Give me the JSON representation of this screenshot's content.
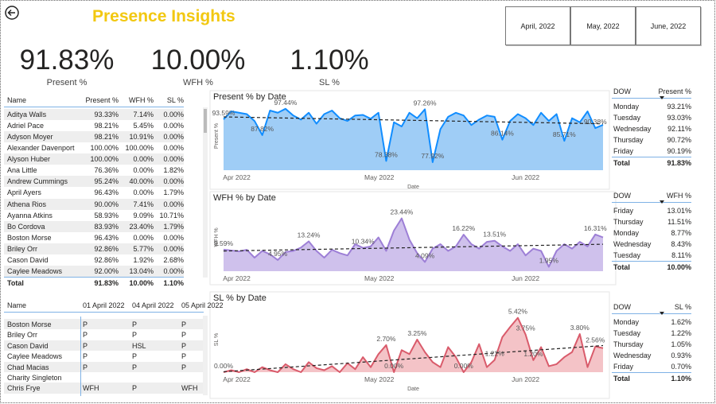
{
  "header": {
    "title": "Presence Insights"
  },
  "months": [
    "April, 2022",
    "May, 2022",
    "June, 2022"
  ],
  "kpis": [
    {
      "value": "91.83%",
      "label": "Present %"
    },
    {
      "value": "10.00%",
      "label": "WFH %"
    },
    {
      "value": "1.10%",
      "label": "SL %"
    }
  ],
  "summary_table": {
    "columns": [
      "Name",
      "Present %",
      "WFH %",
      "SL %"
    ],
    "rows": [
      [
        "Aditya Walls",
        "93.33%",
        "7.14%",
        "0.00%"
      ],
      [
        "Adriel Pace",
        "98.21%",
        "5.45%",
        "0.00%"
      ],
      [
        "Adyson Moyer",
        "98.21%",
        "10.91%",
        "0.00%"
      ],
      [
        "Alexander Davenport",
        "100.00%",
        "100.00%",
        "0.00%"
      ],
      [
        "Alyson Huber",
        "100.00%",
        "0.00%",
        "0.00%"
      ],
      [
        "Ana Little",
        "76.36%",
        "0.00%",
        "1.82%"
      ],
      [
        "Andrew Cummings",
        "95.24%",
        "40.00%",
        "0.00%"
      ],
      [
        "April Ayers",
        "96.43%",
        "0.00%",
        "1.79%"
      ],
      [
        "Athena Rios",
        "90.00%",
        "7.41%",
        "0.00%"
      ],
      [
        "Ayanna Atkins",
        "58.93%",
        "9.09%",
        "10.71%"
      ],
      [
        "Bo Cordova",
        "83.93%",
        "23.40%",
        "1.79%"
      ],
      [
        "Boston Morse",
        "96.43%",
        "0.00%",
        "0.00%"
      ],
      [
        "Briley Orr",
        "92.86%",
        "5.77%",
        "0.00%"
      ],
      [
        "Cason David",
        "92.86%",
        "1.92%",
        "2.68%"
      ],
      [
        "Caylee Meadows",
        "92.00%",
        "13.04%",
        "0.00%"
      ]
    ],
    "total": [
      "Total",
      "91.83%",
      "10.00%",
      "1.10%"
    ]
  },
  "daily_table": {
    "columns": [
      "Name",
      "01 April 2022",
      "04 April 2022",
      "05 April 2022"
    ],
    "rows": [
      [
        "Boston Morse",
        "P",
        "P",
        "P"
      ],
      [
        "Briley Orr",
        "P",
        "P",
        "P"
      ],
      [
        "Cason David",
        "P",
        "HSL",
        "P"
      ],
      [
        "Caylee Meadows",
        "P",
        "P",
        "P"
      ],
      [
        "Chad Macias",
        "P",
        "P",
        "P"
      ],
      [
        "Charity Singleton",
        null,
        null,
        null
      ],
      [
        "Chris Frye",
        "WFH",
        "P",
        "WFH"
      ]
    ]
  },
  "dow_tables": [
    {
      "columns": [
        "DOW",
        "Present %"
      ],
      "rows": [
        [
          "Monday",
          "93.21%"
        ],
        [
          "Tuesday",
          "93.03%"
        ],
        [
          "Wednesday",
          "92.11%"
        ],
        [
          "Thursday",
          "90.72%"
        ],
        [
          "Friday",
          "90.19%"
        ]
      ],
      "total": [
        "Total",
        "91.83%"
      ]
    },
    {
      "columns": [
        "DOW",
        "WFH %"
      ],
      "rows": [
        [
          "Friday",
          "13.01%"
        ],
        [
          "Thursday",
          "11.51%"
        ],
        [
          "Monday",
          "8.77%"
        ],
        [
          "Wednesday",
          "8.43%"
        ],
        [
          "Tuesday",
          "8.11%"
        ]
      ],
      "total": [
        "Total",
        "10.00%"
      ]
    },
    {
      "columns": [
        "DOW",
        "SL %"
      ],
      "rows": [
        [
          "Monday",
          "1.62%"
        ],
        [
          "Tuesday",
          "1.22%"
        ],
        [
          "Thursday",
          "1.05%"
        ],
        [
          "Wednesday",
          "0.93%"
        ],
        [
          "Friday",
          "0.70%"
        ]
      ],
      "total": [
        "Total",
        "1.10%"
      ]
    }
  ],
  "chart_data": [
    {
      "type": "area",
      "title": "Present % by Date",
      "y_label": "Present %",
      "x_label": "Date",
      "color": "#118dff",
      "fill": "#9fcdf6",
      "trendline": true,
      "xlim": [
        0,
        49
      ],
      "ylim": [
        75,
        100
      ],
      "xticks": [
        {
          "value": 1.7,
          "label": "Apr 2022"
        },
        {
          "value": 20.1,
          "label": "May 2022"
        },
        {
          "value": 39,
          "label": "Jun 2022"
        }
      ],
      "values": [
        93.59,
        96.5,
        96.0,
        95.5,
        93.0,
        87.82,
        96.8,
        96.0,
        97.44,
        95.0,
        93.5,
        96.0,
        92.0,
        95.5,
        96.8,
        94.0,
        93.0,
        95.0,
        95.2,
        93.8,
        96.0,
        78.38,
        92.5,
        91.0,
        96.0,
        94.0,
        97.26,
        77.92,
        90.0,
        94.5,
        96.0,
        95.0,
        91.5,
        93.5,
        95.0,
        94.5,
        86.14,
        93.0,
        95.5,
        94.0,
        91.5,
        96.0,
        93.0,
        95.5,
        85.71,
        94.0,
        92.5,
        96.5,
        90.38,
        91.57
      ],
      "value_labels": [
        "93.59%",
        null,
        null,
        null,
        null,
        "87.82%",
        null,
        null,
        "97.44%",
        null,
        null,
        null,
        null,
        null,
        null,
        null,
        null,
        null,
        null,
        null,
        null,
        "78.38%",
        null,
        null,
        null,
        null,
        "97.26%",
        "77.92%",
        null,
        null,
        null,
        null,
        null,
        null,
        null,
        null,
        "86.14%",
        null,
        null,
        null,
        null,
        null,
        null,
        null,
        "85.71%",
        null,
        null,
        null,
        "90.38%",
        null
      ]
    },
    {
      "type": "area",
      "title": "WFH % by Date",
      "y_label": "WFH %",
      "color": "#9d7fd6",
      "fill": "#cfc1ec",
      "trendline": true,
      "xlim": [
        0,
        49
      ],
      "ylim": [
        0,
        30
      ],
      "xticks": [
        {
          "value": 1.7,
          "label": "Apr 2022"
        },
        {
          "value": 20.1,
          "label": "May 2022"
        },
        {
          "value": 39,
          "label": "Jun 2022"
        }
      ],
      "values": [
        9.59,
        9.2,
        8.8,
        9.5,
        6.0,
        9.0,
        7.5,
        4.95,
        8.5,
        9.0,
        10.5,
        13.24,
        9.0,
        6.0,
        9.5,
        8.0,
        7.0,
        12.0,
        10.34,
        11.0,
        15.0,
        9.0,
        18.0,
        23.44,
        14.0,
        8.0,
        4.09,
        10.0,
        12.0,
        9.0,
        11.0,
        16.22,
        12.0,
        10.0,
        13.0,
        13.51,
        11.0,
        9.0,
        12.0,
        7.0,
        10.0,
        9.0,
        1.95,
        9.0,
        12.0,
        10.0,
        13.0,
        11.0,
        16.31,
        15.0
      ],
      "value_labels": [
        "9.59%",
        null,
        null,
        null,
        null,
        null,
        null,
        "4.95%",
        null,
        null,
        null,
        "13.24%",
        null,
        null,
        null,
        null,
        null,
        null,
        "10.34%",
        null,
        null,
        null,
        null,
        "23.44%",
        null,
        null,
        "4.09%",
        null,
        null,
        null,
        null,
        "16.22%",
        null,
        null,
        null,
        "13.51%",
        null,
        null,
        null,
        null,
        null,
        null,
        "1.95%",
        null,
        null,
        null,
        null,
        null,
        "16.31%",
        null
      ]
    },
    {
      "type": "area",
      "title": "SL % by Date",
      "y_label": "SL %",
      "x_label": "Date",
      "color": "#d95b6b",
      "fill": "#f4c3c7",
      "trendline": true,
      "xlim": [
        0,
        49
      ],
      "ylim": [
        0,
        6.5
      ],
      "xticks": [
        {
          "value": 1.7,
          "label": "Apr 2022"
        },
        {
          "value": 20.1,
          "label": "May 2022"
        },
        {
          "value": 39,
          "label": "Jun 2022"
        }
      ],
      "values": [
        0.0,
        0.2,
        0.0,
        0.3,
        0.0,
        0.5,
        0.2,
        0.0,
        0.8,
        0.3,
        0.0,
        1.0,
        0.4,
        0.2,
        0.6,
        0.0,
        0.9,
        0.3,
        1.5,
        0.5,
        1.8,
        2.7,
        0.0,
        2.2,
        1.8,
        3.25,
        2.0,
        1.0,
        0.5,
        2.5,
        1.5,
        0.0,
        1.0,
        2.8,
        0.5,
        1.22,
        3.5,
        4.5,
        5.42,
        3.75,
        1.2,
        2.5,
        0.6,
        0.8,
        1.5,
        2.0,
        3.8,
        0.5,
        2.56,
        2.4
      ],
      "value_labels": [
        "0.00%",
        null,
        null,
        null,
        null,
        null,
        null,
        null,
        null,
        null,
        null,
        null,
        null,
        null,
        null,
        null,
        null,
        null,
        null,
        null,
        null,
        "2.70%",
        "0.00%",
        null,
        null,
        "3.25%",
        null,
        null,
        null,
        null,
        null,
        "0.00%",
        null,
        null,
        null,
        "1.22%",
        null,
        null,
        "5.42%",
        "3.75%",
        "1.20%",
        null,
        null,
        null,
        null,
        null,
        "3.80%",
        null,
        "2.56%",
        null
      ]
    }
  ]
}
